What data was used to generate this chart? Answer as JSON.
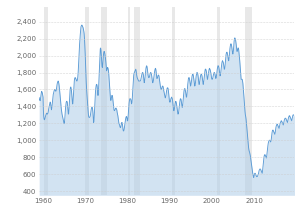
{
  "background_color": "#ffffff",
  "line_color": "#5b9bd5",
  "fill_color": "#aecde8",
  "grid_color": "#cccccc",
  "text_color": "#666666",
  "recession_color": "#e8e8e8",
  "xlim": [
    1959.0,
    2019.5
  ],
  "ylim": [
    350,
    2580
  ],
  "yticks": [
    400,
    600,
    800,
    1000,
    1200,
    1400,
    1600,
    1800,
    2000,
    2200,
    2400
  ],
  "xticks": [
    1960,
    1970,
    1980,
    1990,
    2000,
    2010
  ],
  "recession_bands": [
    [
      1960.25,
      1961.17
    ],
    [
      1969.92,
      1970.92
    ],
    [
      1973.75,
      1975.17
    ],
    [
      1980.0,
      1980.5
    ],
    [
      1981.5,
      1982.92
    ],
    [
      1990.58,
      1991.33
    ],
    [
      2001.33,
      2001.92
    ],
    [
      2007.92,
      2009.5
    ]
  ],
  "monthly_data": [
    1503,
    1480,
    1472,
    1468,
    1501,
    1542,
    1558,
    1577,
    1570,
    1558,
    1534,
    1510,
    1350,
    1280,
    1250,
    1242,
    1250,
    1270,
    1285,
    1296,
    1310,
    1320,
    1315,
    1310,
    1310,
    1320,
    1340,
    1370,
    1390,
    1410,
    1430,
    1450,
    1450,
    1420,
    1390,
    1360,
    1380,
    1420,
    1470,
    1510,
    1540,
    1560,
    1575,
    1590,
    1600,
    1600,
    1590,
    1580,
    1580,
    1600,
    1630,
    1660,
    1680,
    1690,
    1700,
    1690,
    1670,
    1640,
    1600,
    1555,
    1510,
    1460,
    1410,
    1370,
    1340,
    1310,
    1290,
    1270,
    1250,
    1230,
    1210,
    1196,
    1210,
    1260,
    1330,
    1380,
    1420,
    1450,
    1460,
    1460,
    1450,
    1410,
    1360,
    1310,
    1310,
    1370,
    1450,
    1530,
    1590,
    1620,
    1630,
    1610,
    1580,
    1530,
    1480,
    1430,
    1430,
    1500,
    1580,
    1650,
    1700,
    1730,
    1740,
    1740,
    1730,
    1720,
    1710,
    1700,
    1700,
    1720,
    1750,
    1800,
    1870,
    1960,
    2050,
    2130,
    2200,
    2250,
    2300,
    2340,
    2350,
    2360,
    2360,
    2350,
    2340,
    2330,
    2310,
    2290,
    2260,
    2200,
    2120,
    2020,
    1900,
    1780,
    1680,
    1600,
    1540,
    1480,
    1420,
    1360,
    1310,
    1280,
    1270,
    1270,
    1270,
    1280,
    1300,
    1330,
    1360,
    1380,
    1390,
    1390,
    1370,
    1330,
    1270,
    1210,
    1220,
    1290,
    1380,
    1470,
    1550,
    1610,
    1640,
    1660,
    1660,
    1640,
    1590,
    1530,
    1530,
    1600,
    1700,
    1810,
    1930,
    2020,
    2080,
    2090,
    2060,
    2000,
    1930,
    1870,
    1860,
    1900,
    1960,
    2010,
    2040,
    2050,
    2040,
    2020,
    1990,
    1960,
    1910,
    1850,
    1820,
    1830,
    1850,
    1860,
    1850,
    1830,
    1790,
    1730,
    1670,
    1600,
    1540,
    1490,
    1470,
    1480,
    1510,
    1530,
    1530,
    1510,
    1470,
    1420,
    1380,
    1360,
    1350,
    1350,
    1360,
    1370,
    1380,
    1380,
    1370,
    1360,
    1330,
    1310,
    1290,
    1260,
    1230,
    1200,
    1190,
    1180,
    1160,
    1150,
    1150,
    1170,
    1190,
    1210,
    1210,
    1190,
    1150,
    1120,
    1110,
    1110,
    1130,
    1160,
    1190,
    1220,
    1250,
    1270,
    1280,
    1280,
    1260,
    1230,
    1230,
    1270,
    1330,
    1390,
    1440,
    1470,
    1490,
    1490,
    1490,
    1480,
    1460,
    1430,
    1440,
    1490,
    1560,
    1640,
    1710,
    1760,
    1790,
    1800,
    1810,
    1820,
    1830,
    1840,
    1820,
    1790,
    1760,
    1740,
    1730,
    1720,
    1710,
    1700,
    1700,
    1700,
    1700,
    1700,
    1700,
    1710,
    1730,
    1750,
    1770,
    1790,
    1800,
    1800,
    1790,
    1760,
    1720,
    1680,
    1690,
    1730,
    1780,
    1820,
    1850,
    1870,
    1880,
    1870,
    1840,
    1800,
    1770,
    1750,
    1740,
    1740,
    1750,
    1770,
    1790,
    1800,
    1800,
    1790,
    1770,
    1740,
    1710,
    1680,
    1680,
    1700,
    1730,
    1760,
    1790,
    1820,
    1840,
    1850,
    1840,
    1810,
    1770,
    1730,
    1730,
    1740,
    1760,
    1770,
    1770,
    1760,
    1730,
    1700,
    1670,
    1640,
    1620,
    1600,
    1600,
    1610,
    1630,
    1640,
    1640,
    1630,
    1600,
    1580,
    1560,
    1540,
    1520,
    1500,
    1510,
    1530,
    1560,
    1590,
    1610,
    1620,
    1620,
    1610,
    1580,
    1540,
    1500,
    1460,
    1450,
    1450,
    1470,
    1490,
    1500,
    1510,
    1500,
    1490,
    1460,
    1420,
    1380,
    1350,
    1350,
    1370,
    1400,
    1430,
    1450,
    1460,
    1450,
    1430,
    1400,
    1370,
    1340,
    1310,
    1310,
    1330,
    1370,
    1410,
    1440,
    1470,
    1490,
    1490,
    1480,
    1450,
    1420,
    1390,
    1390,
    1430,
    1480,
    1530,
    1570,
    1600,
    1610,
    1610,
    1590,
    1570,
    1540,
    1510,
    1510,
    1550,
    1610,
    1660,
    1700,
    1730,
    1740,
    1740,
    1720,
    1700,
    1670,
    1640,
    1650,
    1680,
    1720,
    1750,
    1770,
    1780,
    1780,
    1760,
    1730,
    1700,
    1670,
    1640,
    1650,
    1680,
    1720,
    1760,
    1780,
    1800,
    1800,
    1790,
    1770,
    1740,
    1700,
    1660,
    1660,
    1690,
    1720,
    1750,
    1770,
    1780,
    1780,
    1770,
    1750,
    1720,
    1690,
    1660,
    1680,
    1710,
    1750,
    1790,
    1820,
    1840,
    1840,
    1830,
    1810,
    1780,
    1750,
    1720,
    1730,
    1760,
    1790,
    1820,
    1840,
    1850,
    1840,
    1830,
    1810,
    1790,
    1760,
    1730,
    1720,
    1720,
    1730,
    1750,
    1770,
    1790,
    1800,
    1800,
    1790,
    1770,
    1750,
    1730,
    1740,
    1770,
    1800,
    1840,
    1860,
    1880,
    1880,
    1870,
    1850,
    1820,
    1790,
    1760,
    1770,
    1800,
    1840,
    1880,
    1910,
    1930,
    1940,
    1930,
    1920,
    1900,
    1870,
    1840,
    1840,
    1870,
    1920,
    1970,
    2010,
    2030,
    2040,
    2040,
    2020,
    2000,
    1970,
    1940,
    1940,
    1980,
    2030,
    2080,
    2110,
    2130,
    2140,
    2130,
    2110,
    2080,
    2050,
    2020,
    2020,
    2060,
    2120,
    2170,
    2200,
    2210,
    2200,
    2190,
    2160,
    2130,
    2090,
    2050,
    2050,
    2070,
    2090,
    2090,
    2070,
    2030,
    1990,
    1940,
    1890,
    1830,
    1770,
    1720,
    1720,
    1720,
    1720,
    1700,
    1670,
    1620,
    1570,
    1510,
    1450,
    1390,
    1340,
    1300,
    1280,
    1250,
    1210,
    1160,
    1110,
    1060,
    1010,
    960,
    920,
    890,
    870,
    860,
    840,
    820,
    790,
    760,
    730,
    700,
    670,
    640,
    610,
    590,
    570,
    560,
    580,
    600,
    610,
    610,
    600,
    590,
    580,
    570,
    570,
    570,
    580,
    590,
    600,
    620,
    640,
    650,
    660,
    660,
    660,
    650,
    640,
    630,
    620,
    610,
    640,
    680,
    730,
    770,
    800,
    820,
    830,
    830,
    820,
    810,
    800,
    790,
    820,
    860,
    900,
    930,
    960,
    980,
    990,
    1000,
    1000,
    1000,
    990,
    980,
    990,
    1020,
    1060,
    1090,
    1110,
    1120,
    1120,
    1110,
    1100,
    1090,
    1080,
    1070,
    1090,
    1120,
    1150,
    1170,
    1180,
    1190,
    1190,
    1180,
    1170,
    1160,
    1150,
    1140,
    1160,
    1180,
    1200,
    1210,
    1220,
    1230,
    1230,
    1220,
    1210,
    1200,
    1190,
    1180,
    1200,
    1220,
    1240,
    1250,
    1260,
    1260,
    1260,
    1250,
    1240,
    1230,
    1220,
    1210,
    1230,
    1250,
    1270,
    1280,
    1290,
    1290,
    1280,
    1270,
    1260,
    1250,
    1240,
    1230,
    1250,
    1270,
    1290,
    1300,
    1300,
    1300,
    1290,
    1280,
    1270,
    1260,
    1250,
    1250
  ]
}
